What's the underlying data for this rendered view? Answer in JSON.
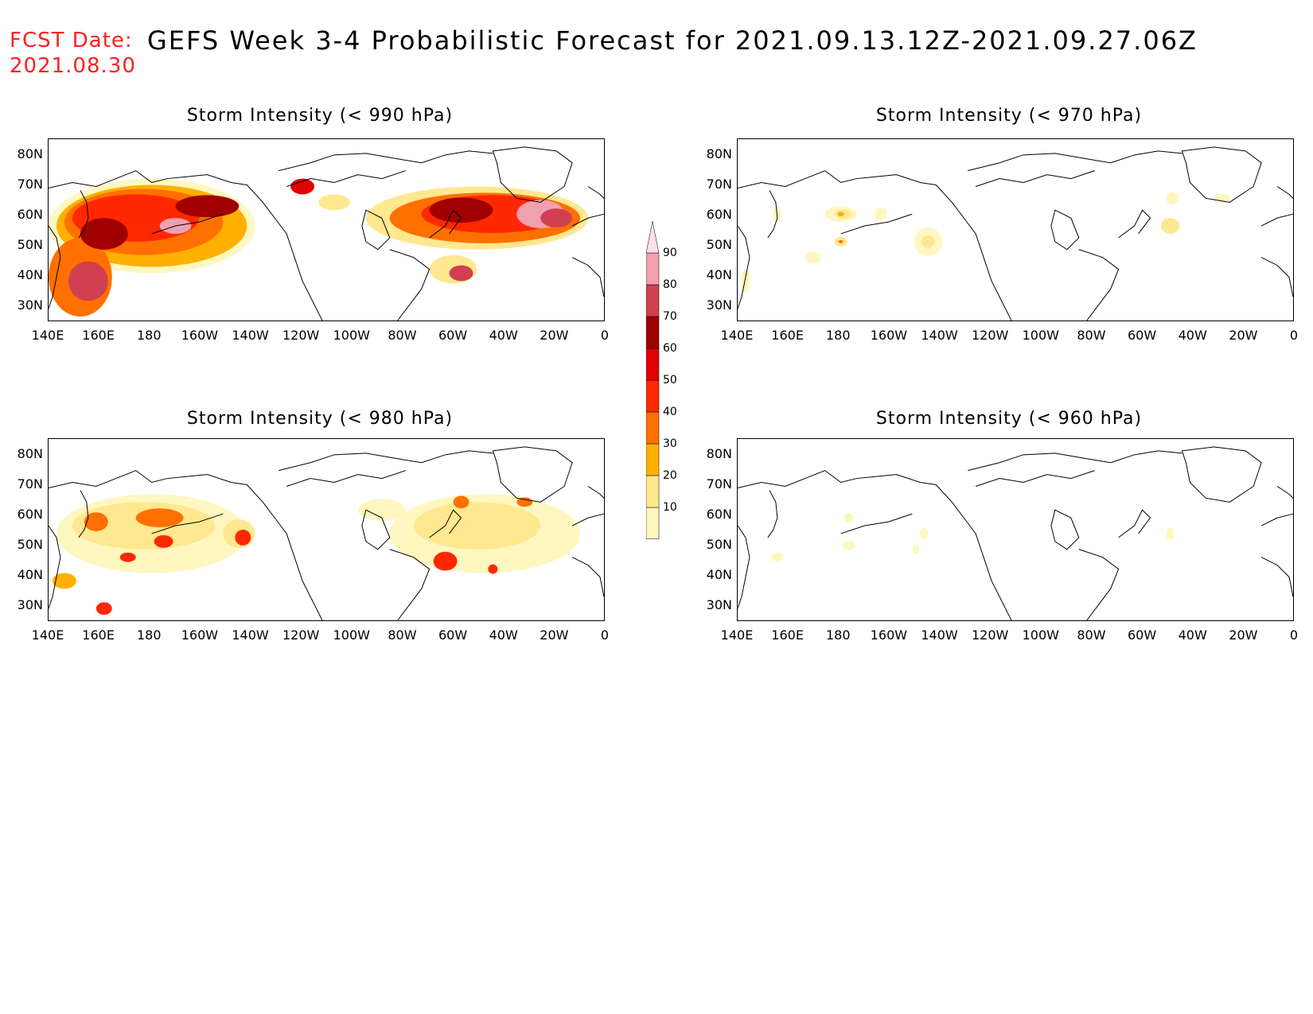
{
  "header": {
    "fcst_label": "FCST Date:",
    "fcst_date": "2021.08.30",
    "title": "GEFS Week 3-4 Probabilistic Forecast for 2021.09.13.12Z-2021.09.27.06Z"
  },
  "axes": {
    "lat_labels": [
      "80N",
      "70N",
      "60N",
      "50N",
      "40N",
      "30N"
    ],
    "lon_labels": [
      "140E",
      "160E",
      "180",
      "160W",
      "140W",
      "120W",
      "100W",
      "80W",
      "60W",
      "40W",
      "20W",
      "0"
    ]
  },
  "panels": [
    {
      "id": "p990",
      "title": "Storm Intensity (< 990 hPa)",
      "coverage": "high"
    },
    {
      "id": "p970",
      "title": "Storm Intensity (< 970 hPa)",
      "coverage": "low"
    },
    {
      "id": "p980",
      "title": "Storm Intensity (< 980 hPa)",
      "coverage": "medium"
    },
    {
      "id": "p960",
      "title": "Storm Intensity (< 960 hPa)",
      "coverage": "minimal"
    }
  ],
  "colorbar": {
    "levels": [
      "10",
      "20",
      "30",
      "40",
      "50",
      "60",
      "70",
      "80",
      "90"
    ],
    "colors": [
      "#fff7c0",
      "#ffe890",
      "#ffb000",
      "#ff7000",
      "#ff2800",
      "#e00000",
      "#a00000",
      "#d04050",
      "#f0a0b0",
      "#fde0e8"
    ]
  }
}
